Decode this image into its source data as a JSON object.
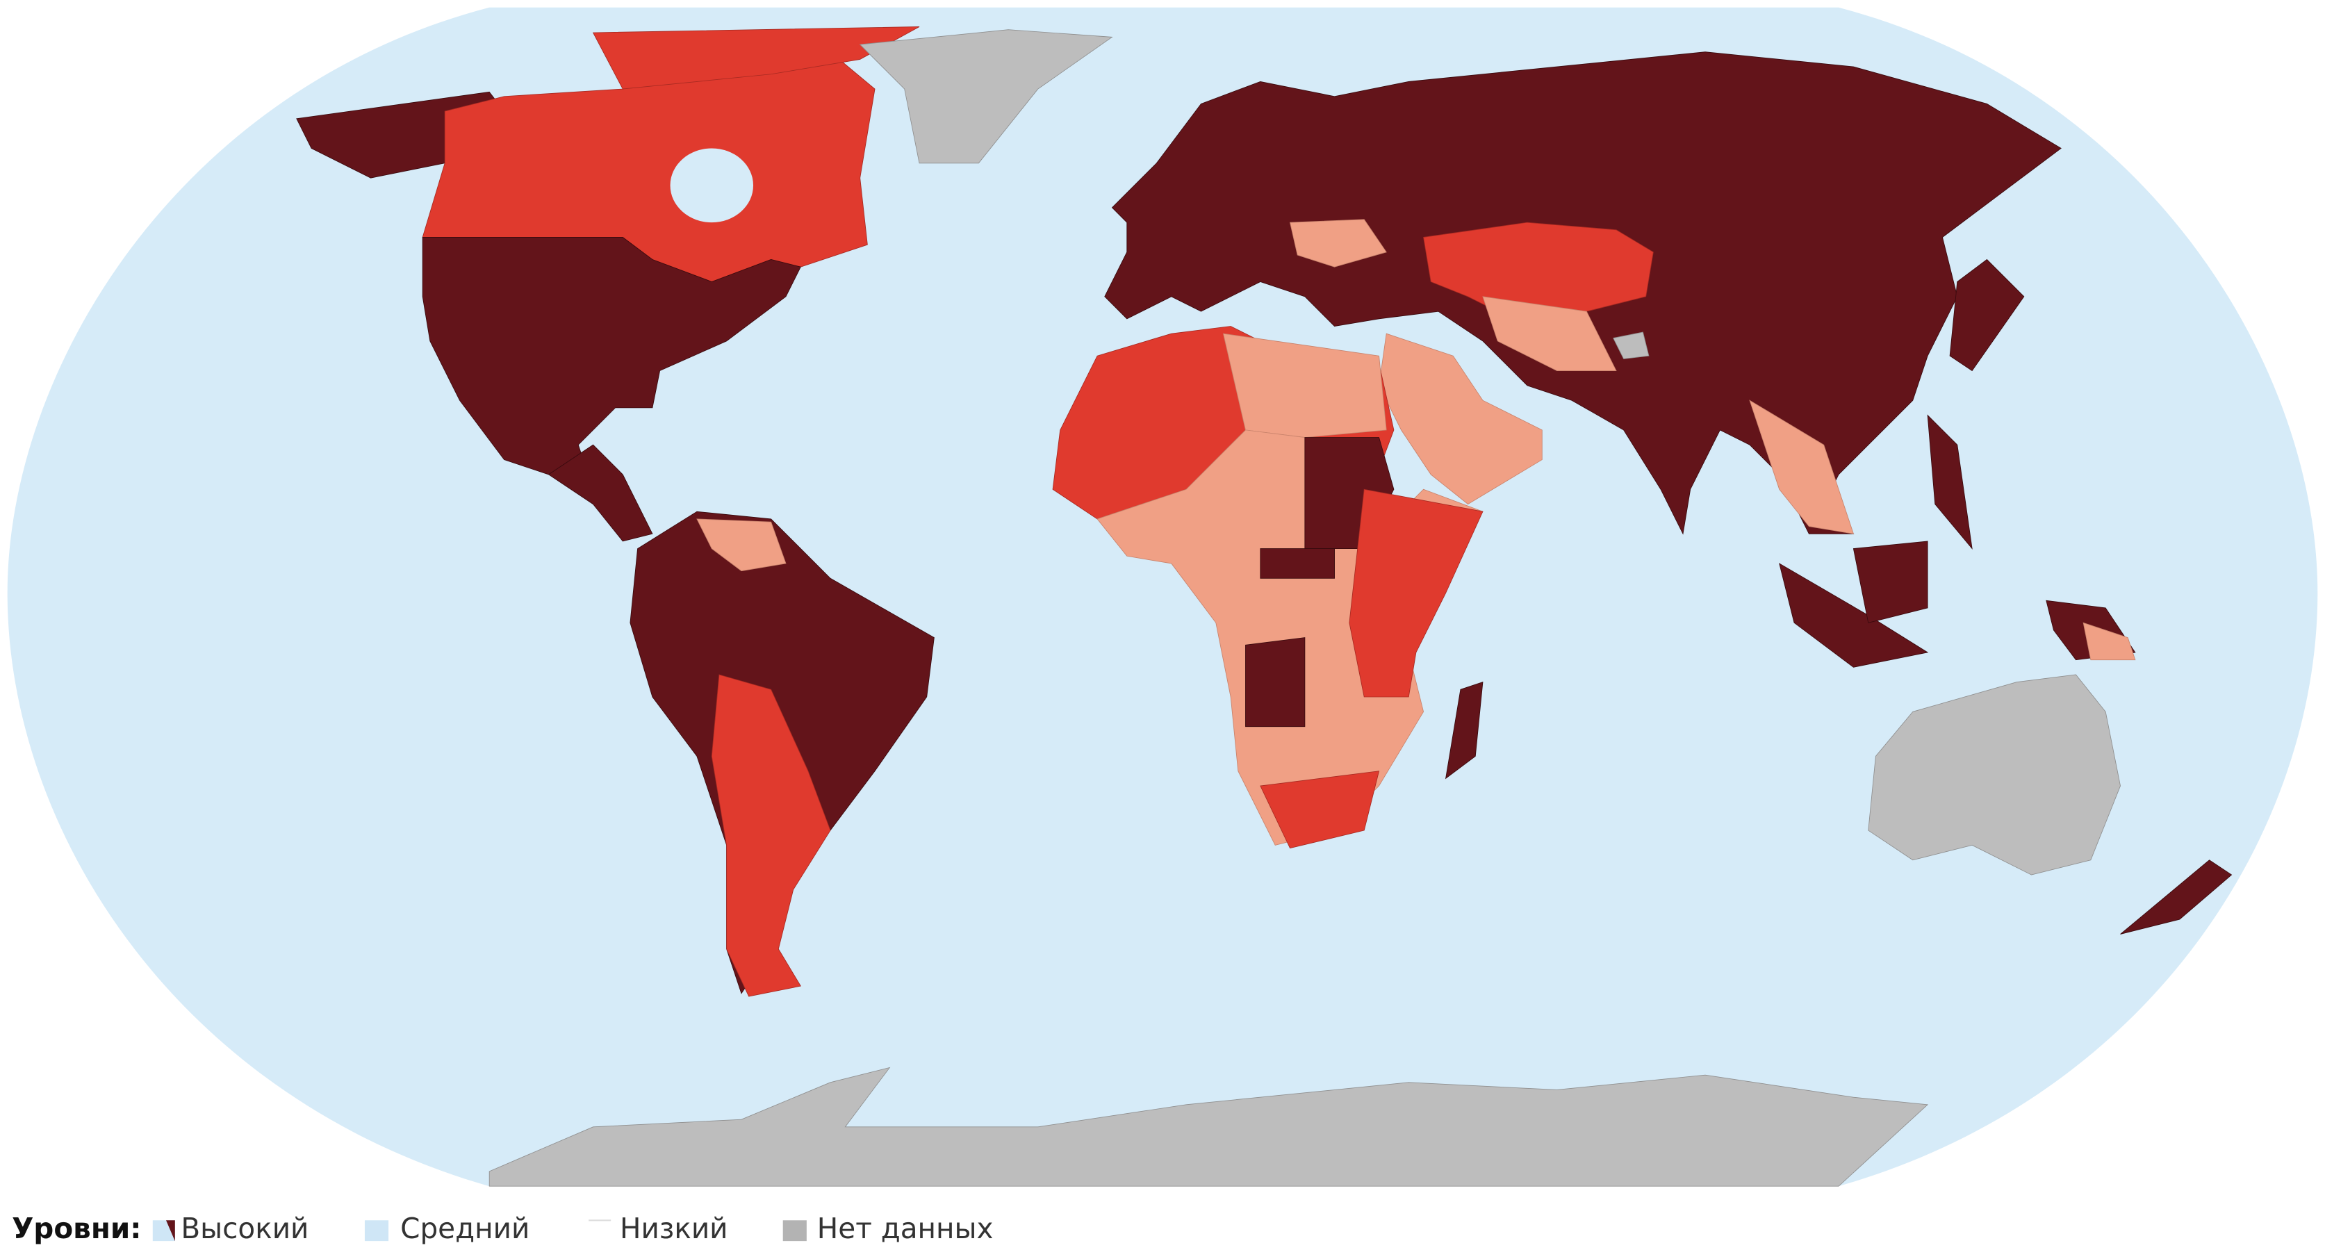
{
  "legend": {
    "title": "Уровни:",
    "items": [
      {
        "label": "Высокий"
      },
      {
        "label": "Средний"
      },
      {
        "label": "Низкий"
      },
      {
        "label": "Нет данных"
      }
    ]
  }
}
